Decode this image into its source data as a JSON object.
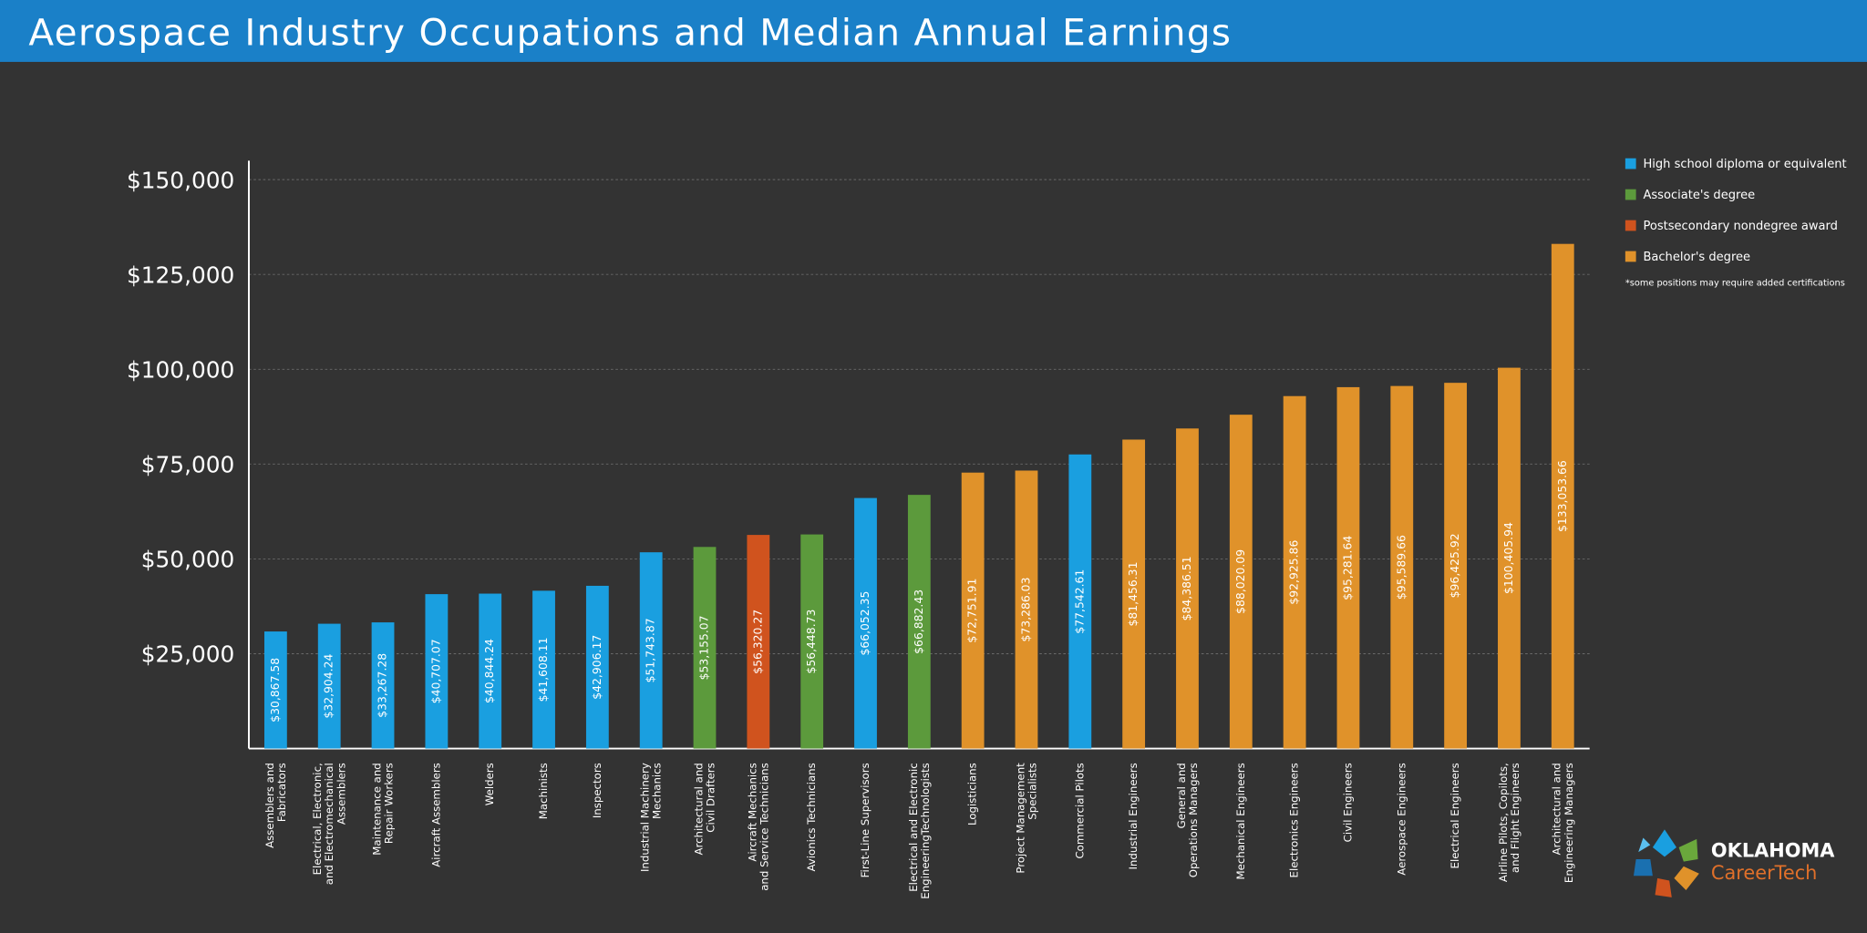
{
  "chart_data": {
    "type": "bar",
    "title": "Aerospace Industry Occupations and Median Annual Earnings",
    "categories": [
      "Assemblers and\nFabricators",
      "Electrical, Electronic,\nand Electromechanical\nAssemblers",
      "Maintenance and\nRepair Workers",
      "Aircraft Assemblers",
      "Welders",
      "Machinists",
      "Inspectors",
      "Industrial Machinery\nMechanics",
      "Architectural and\nCivil Drafters",
      "Aircraft Mechanics\nand Service Technicians",
      "Avionics Technicians",
      "First-Line Supervisors",
      "Electrical and Electronic\nEngineeringTechnologists",
      "Logisticians",
      "Project Management\nSpecialists",
      "Commercial Pilots",
      "Industrial Engineers",
      "General and\nOperations Managers",
      "Mechanical Engineers",
      "Electronics Engineers",
      "Civil Engineers",
      "Aerospace Engineers",
      "Electrical Engineers",
      "Airline Pilots, Copilots,\nand Flight Engineers",
      "Architectural and\nEngineering Managers"
    ],
    "series": [
      {
        "name": "High school diploma or equivalent",
        "color": "#1a9fe0",
        "values": [
          30867.58,
          32904.24,
          33267.28,
          40707.07,
          40844.24,
          41608.11,
          42906.17,
          51743.87,
          null,
          null,
          null,
          66052.35,
          null,
          null,
          null,
          77542.61,
          null,
          null,
          null,
          null,
          null,
          null,
          null,
          null,
          null
        ],
        "value_labels": [
          "$30,867.58",
          "$32,904.24",
          "$33,267.28",
          "$40,707.07",
          "$40,844.24",
          "$41,608.11",
          "$42,906.17",
          "$51,743.87",
          null,
          null,
          null,
          "$66,052.35",
          null,
          null,
          null,
          "$77,542.61",
          null,
          null,
          null,
          null,
          null,
          null,
          null,
          null,
          null
        ]
      },
      {
        "name": "Associate's degree",
        "color": "#5c9a3c",
        "values": [
          null,
          null,
          null,
          null,
          null,
          null,
          null,
          null,
          53155.07,
          null,
          56448.73,
          null,
          66882.43,
          null,
          null,
          null,
          null,
          null,
          null,
          null,
          null,
          null,
          null,
          null,
          null
        ],
        "value_labels": [
          null,
          null,
          null,
          null,
          null,
          null,
          null,
          null,
          "$53,155.07",
          null,
          "$56,448.73",
          null,
          "$66,882.43",
          null,
          null,
          null,
          null,
          null,
          null,
          null,
          null,
          null,
          null,
          null,
          null
        ]
      },
      {
        "name": "Postsecondary nondegree award",
        "color": "#d0531e",
        "values": [
          null,
          null,
          null,
          null,
          null,
          null,
          null,
          null,
          null,
          56320.27,
          null,
          null,
          null,
          null,
          null,
          null,
          null,
          null,
          null,
          null,
          null,
          null,
          null,
          null,
          null
        ],
        "value_labels": [
          null,
          null,
          null,
          null,
          null,
          null,
          null,
          null,
          null,
          "$56,320.27",
          null,
          null,
          null,
          null,
          null,
          null,
          null,
          null,
          null,
          null,
          null,
          null,
          null,
          null,
          null
        ]
      },
      {
        "name": "Bachelor's degree",
        "color": "#e0922a",
        "values": [
          null,
          null,
          null,
          null,
          null,
          null,
          null,
          null,
          null,
          null,
          null,
          null,
          null,
          72751.91,
          73286.03,
          null,
          81456.31,
          84386.51,
          88020.09,
          92925.86,
          95281.64,
          95589.66,
          96425.92,
          100405.94,
          133053.66
        ],
        "value_labels": [
          null,
          null,
          null,
          null,
          null,
          null,
          null,
          null,
          null,
          null,
          null,
          null,
          null,
          "$72,751.91",
          "$73,286.03",
          null,
          "$81,456.31",
          "$84,386.51",
          "$88,020.09",
          "$92,925.86",
          "$95,281.64",
          "$95,589.66",
          "$96,425.92",
          "$100,405.94",
          "$133,053.66"
        ]
      }
    ],
    "ylim": [
      0,
      155000
    ],
    "yticks": [
      {
        "value": 25000,
        "label": "$25,000"
      },
      {
        "value": 50000,
        "label": "$50,000"
      },
      {
        "value": 75000,
        "label": "$75,000"
      },
      {
        "value": 100000,
        "label": "$100,000"
      },
      {
        "value": 125000,
        "label": "$125,000"
      },
      {
        "value": 150000,
        "label": "$150,000"
      }
    ],
    "grid": true,
    "legend": "right",
    "note": "*some positions may require added certifications"
  },
  "logo": {
    "line1": "OKLAHOMA",
    "line2": "CareerTech"
  }
}
